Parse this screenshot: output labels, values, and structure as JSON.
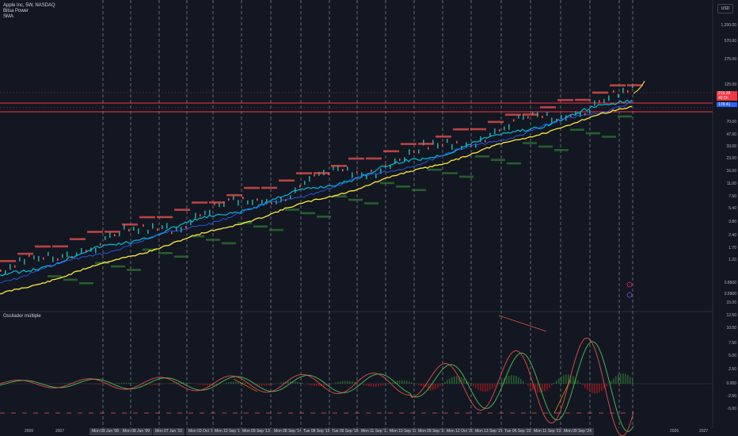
{
  "header": {
    "title": "Apple Inc, 5W, NASDAQ",
    "indicators": [
      "Bitsa Power",
      "SMA"
    ]
  },
  "oscillator": {
    "title": "Oscilador múltiple"
  },
  "currency": "USD",
  "price_scale": [
    "1,200.00",
    "570.00",
    "275.00",
    "125.00",
    "95.00",
    "70.00",
    "47.00",
    "33.00",
    "23.00",
    "16.00",
    "11.00",
    "7.50",
    "5.40",
    "3.80",
    "2.40",
    "1.70",
    "1.20",
    "0.8500",
    "0.5900"
  ],
  "price_tags": [
    {
      "label": "219.39",
      "color": "#f23645"
    },
    {
      "label": "40.5h",
      "color": "#f23645"
    },
    {
      "label": "178.41",
      "color": "#2962ff"
    }
  ],
  "osc_scale": [
    "15.00",
    "12.50",
    "10.00",
    "7.50",
    "5.00",
    "2.50",
    "0.000",
    "-2.50",
    "-5.00"
  ],
  "date_labels": [
    "Mon 09 Jun '08",
    "Mon 08 Jun '09",
    "Mon 07 Jun '10",
    "Mon 03 Oct '11",
    "Mon 10 Sep '12",
    "Mon 09 Sep '13",
    "Mon 08 Sep '14",
    "Tue 08 Sep '15",
    "Tue 06 Sep '16",
    "Mon 11 Sep '17",
    "Mon 10 Sep '18",
    "Mon 09 Sep '19",
    "Mon 12 Oct '20",
    "Mon 13 Sep '21",
    "Tue 06 Sep '22",
    "Mon 11 Sep '23",
    "Mon 09 Sep '24"
  ],
  "year_labels": [
    "2006",
    "2007",
    "2026",
    "2027"
  ],
  "colors": {
    "background": "#131722",
    "up": "#26a69a",
    "down": "#ef5350",
    "sma_yellow": "#ffeb3b",
    "line_cyan": "#00bcd4",
    "line_blue": "#2962ff",
    "resistance": "#f23645",
    "support": "#1b5e20"
  }
}
